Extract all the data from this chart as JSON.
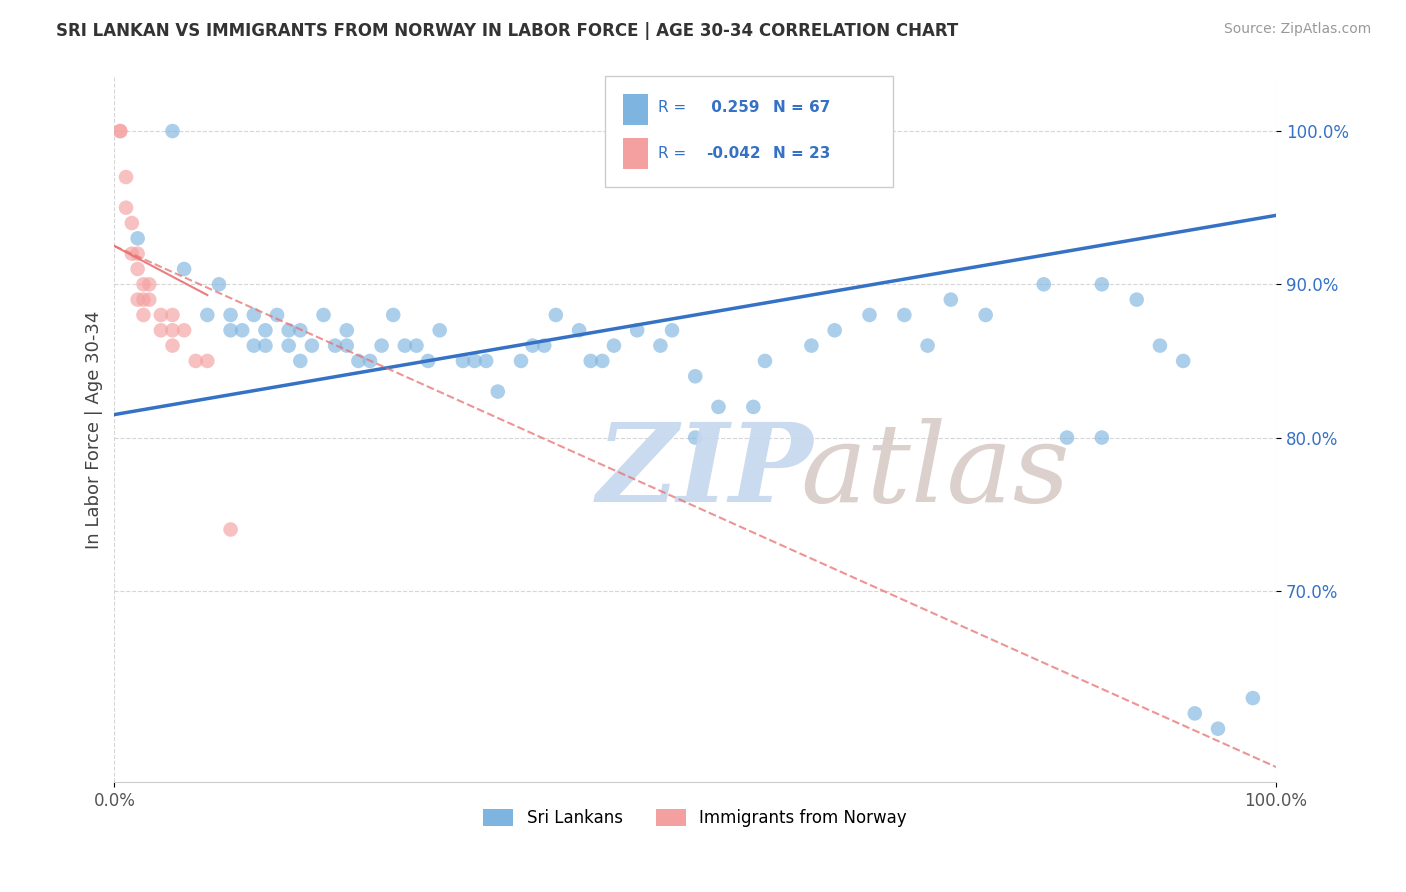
{
  "title": "SRI LANKAN VS IMMIGRANTS FROM NORWAY IN LABOR FORCE | AGE 30-34 CORRELATION CHART",
  "source": "Source: ZipAtlas.com",
  "ylabel": "In Labor Force | Age 30-34",
  "xlim": [
    0.0,
    1.0
  ],
  "ylim": [
    0.575,
    1.035
  ],
  "ytick_values": [
    0.7,
    0.8,
    0.9,
    1.0
  ],
  "legend_label1": "Sri Lankans",
  "legend_label2": "Immigrants from Norway",
  "R1": 0.259,
  "N1": 67,
  "R2": -0.042,
  "N2": 23,
  "blue_color": "#7EB4E0",
  "pink_color": "#F4A0A0",
  "trendline_blue": "#3572C6",
  "trendline_pink": "#E87070",
  "blue_line_x0": 0.0,
  "blue_line_y0": 0.815,
  "blue_line_x1": 1.0,
  "blue_line_y1": 0.945,
  "pink_line_x0": 0.0,
  "pink_line_y0": 0.925,
  "pink_line_x1": 1.0,
  "pink_line_y1": 0.585,
  "blue_x": [
    0.02,
    0.05,
    0.06,
    0.08,
    0.09,
    0.1,
    0.1,
    0.11,
    0.12,
    0.12,
    0.13,
    0.13,
    0.14,
    0.15,
    0.15,
    0.16,
    0.16,
    0.17,
    0.18,
    0.19,
    0.2,
    0.2,
    0.21,
    0.22,
    0.23,
    0.24,
    0.25,
    0.26,
    0.27,
    0.28,
    0.3,
    0.31,
    0.32,
    0.33,
    0.35,
    0.36,
    0.37,
    0.38,
    0.4,
    0.41,
    0.42,
    0.43,
    0.45,
    0.47,
    0.48,
    0.5,
    0.5,
    0.52,
    0.55,
    0.56,
    0.6,
    0.62,
    0.65,
    0.68,
    0.7,
    0.72,
    0.75,
    0.8,
    0.82,
    0.85,
    0.85,
    0.88,
    0.9,
    0.92,
    0.93,
    0.95,
    0.98
  ],
  "blue_y": [
    0.93,
    1.0,
    0.91,
    0.88,
    0.9,
    0.88,
    0.87,
    0.87,
    0.86,
    0.88,
    0.87,
    0.86,
    0.88,
    0.87,
    0.86,
    0.87,
    0.85,
    0.86,
    0.88,
    0.86,
    0.87,
    0.86,
    0.85,
    0.85,
    0.86,
    0.88,
    0.86,
    0.86,
    0.85,
    0.87,
    0.85,
    0.85,
    0.85,
    0.83,
    0.85,
    0.86,
    0.86,
    0.88,
    0.87,
    0.85,
    0.85,
    0.86,
    0.87,
    0.86,
    0.87,
    0.84,
    0.8,
    0.82,
    0.82,
    0.85,
    0.86,
    0.87,
    0.88,
    0.88,
    0.86,
    0.89,
    0.88,
    0.9,
    0.8,
    0.8,
    0.9,
    0.89,
    0.86,
    0.85,
    0.62,
    0.61,
    0.63
  ],
  "pink_x": [
    0.005,
    0.005,
    0.01,
    0.01,
    0.015,
    0.015,
    0.02,
    0.02,
    0.02,
    0.025,
    0.025,
    0.025,
    0.03,
    0.03,
    0.04,
    0.04,
    0.05,
    0.05,
    0.05,
    0.06,
    0.07,
    0.08,
    0.1
  ],
  "pink_y": [
    1.0,
    1.0,
    0.97,
    0.95,
    0.94,
    0.92,
    0.92,
    0.91,
    0.89,
    0.9,
    0.89,
    0.88,
    0.9,
    0.89,
    0.88,
    0.87,
    0.88,
    0.87,
    0.86,
    0.87,
    0.85,
    0.85,
    0.74
  ]
}
